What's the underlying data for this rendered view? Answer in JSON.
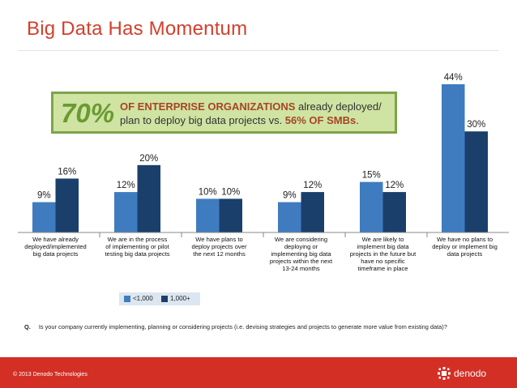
{
  "slide": {
    "title": "Big Data Has Momentum",
    "callout": {
      "percent": "70%",
      "text_bold1": "OF ENTERPRISE ORGANIZATIONS",
      "text_mid": " already deployed/ plan to deploy big data projects vs. ",
      "text_bold2": "56% OF SMBs",
      "text_end": "."
    },
    "question_label": "Q.",
    "question": "Is your company currently implementing, planning or considering projects (i.e. devising strategies and projects to generate more value from existing data)?",
    "copyright": "© 2013 Denodo Technologies",
    "logo_text": "denodo"
  },
  "chart_data": {
    "type": "bar",
    "categories": [
      "We have already deployed/implemented big data projects",
      "We are in the process of implementing or pilot testing big data projects",
      "We have plans to deploy projects over the next 12 months",
      "We are considering deploying or implementing big data projects within the next 13-24 months",
      "We are likely to implement big data projects in the future but have no specific timeframe in place",
      "We have no plans to deploy or implement big data projects"
    ],
    "category_lines": [
      [
        "We have already",
        "deployed/implemented",
        "big data projects"
      ],
      [
        "We are in the process",
        "of implementing or pilot",
        "testing big data projects"
      ],
      [
        "We have plans to",
        "deploy projects over",
        "the next 12 months"
      ],
      [
        "We are considering",
        "deploying or",
        "implementing big data",
        "projects within the next",
        "13-24 months"
      ],
      [
        "We are likely to",
        "implement big data",
        "projects in the future but",
        "have no specific",
        "timeframe in place"
      ],
      [
        "We have no plans to",
        "deploy or implement big",
        "data projects"
      ]
    ],
    "series": [
      {
        "name": "<1,000",
        "values": [
          9,
          12,
          10,
          9,
          15,
          44
        ],
        "color": "#3f7cbf"
      },
      {
        "name": "1,000+",
        "values": [
          16,
          20,
          10,
          12,
          12,
          30
        ],
        "color": "#1b3f6b"
      }
    ],
    "value_suffix": "%",
    "ylim": [
      0,
      44
    ],
    "grid": false,
    "legend_position": "bottom-left"
  }
}
